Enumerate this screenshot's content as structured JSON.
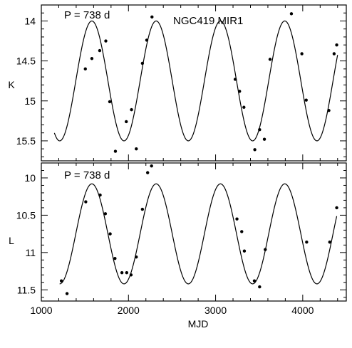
{
  "chart_data": [
    {
      "type": "scatter",
      "title": "",
      "annotations": [
        "P = 738 d",
        "NGC419 MIR1"
      ],
      "xlabel": "MJD",
      "ylabel": "K",
      "xlim": [
        1000,
        4500
      ],
      "ylim": [
        15.75,
        13.8
      ],
      "y_inverted": true,
      "x_ticks": [
        1000,
        2000,
        3000,
        4000
      ],
      "y_ticks": [
        14,
        14.5,
        15,
        15.5
      ],
      "y_tick_labels": [
        "14",
        "14.5",
        "15",
        "15.5"
      ],
      "show_x_tick_labels": false,
      "model": {
        "type": "sinusoid",
        "period_days": 738,
        "mean": 14.75,
        "amplitude": 0.75,
        "peak_mjd": 1580,
        "x_range": [
          1150,
          4400
        ]
      },
      "points": [
        {
          "x": 1505,
          "y": 14.6
        },
        {
          "x": 1580,
          "y": 14.47
        },
        {
          "x": 1670,
          "y": 14.37
        },
        {
          "x": 1740,
          "y": 14.25
        },
        {
          "x": 1785,
          "y": 15.01
        },
        {
          "x": 1850,
          "y": 15.63
        },
        {
          "x": 1975,
          "y": 15.26
        },
        {
          "x": 2035,
          "y": 15.11
        },
        {
          "x": 2090,
          "y": 15.6
        },
        {
          "x": 2160,
          "y": 14.53
        },
        {
          "x": 2210,
          "y": 14.24
        },
        {
          "x": 2270,
          "y": 13.95
        },
        {
          "x": 3225,
          "y": 14.73
        },
        {
          "x": 3275,
          "y": 14.88
        },
        {
          "x": 3325,
          "y": 15.08
        },
        {
          "x": 3450,
          "y": 15.61
        },
        {
          "x": 3505,
          "y": 15.36
        },
        {
          "x": 3560,
          "y": 15.48
        },
        {
          "x": 3625,
          "y": 14.48
        },
        {
          "x": 3870,
          "y": 13.91
        },
        {
          "x": 3990,
          "y": 14.41
        },
        {
          "x": 4040,
          "y": 14.99
        },
        {
          "x": 4300,
          "y": 15.12
        },
        {
          "x": 4360,
          "y": 14.41
        },
        {
          "x": 4390,
          "y": 14.3
        }
      ]
    },
    {
      "type": "scatter",
      "title": "",
      "annotations": [
        "P = 738 d"
      ],
      "xlabel": "MJD",
      "ylabel": "L",
      "xlim": [
        1000,
        4500
      ],
      "ylim": [
        11.65,
        9.8
      ],
      "y_inverted": true,
      "x_ticks": [
        1000,
        2000,
        3000,
        4000
      ],
      "x_tick_labels": [
        "1000",
        "2000",
        "3000",
        "4000"
      ],
      "y_ticks": [
        10,
        10.5,
        11,
        11.5
      ],
      "y_tick_labels": [
        "10",
        "10.5",
        "11",
        "11.5"
      ],
      "show_x_tick_labels": true,
      "model": {
        "type": "sinusoid",
        "period_days": 738,
        "mean": 10.75,
        "amplitude": 0.67,
        "peak_mjd": 1580,
        "x_range": [
          1210,
          4390
        ]
      },
      "points": [
        {
          "x": 1230,
          "y": 11.38
        },
        {
          "x": 1295,
          "y": 11.55
        },
        {
          "x": 1510,
          "y": 10.32
        },
        {
          "x": 1675,
          "y": 10.23
        },
        {
          "x": 1735,
          "y": 10.48
        },
        {
          "x": 1790,
          "y": 10.75
        },
        {
          "x": 1845,
          "y": 11.08
        },
        {
          "x": 1925,
          "y": 11.27
        },
        {
          "x": 1980,
          "y": 11.27
        },
        {
          "x": 2030,
          "y": 11.3
        },
        {
          "x": 2090,
          "y": 11.06
        },
        {
          "x": 2160,
          "y": 10.42
        },
        {
          "x": 2220,
          "y": 9.93
        },
        {
          "x": 2265,
          "y": 9.84
        },
        {
          "x": 3245,
          "y": 10.55
        },
        {
          "x": 3300,
          "y": 10.72
        },
        {
          "x": 3330,
          "y": 10.98
        },
        {
          "x": 3445,
          "y": 11.38
        },
        {
          "x": 3505,
          "y": 11.46
        },
        {
          "x": 3570,
          "y": 10.96
        },
        {
          "x": 4045,
          "y": 10.86
        },
        {
          "x": 4310,
          "y": 10.86
        },
        {
          "x": 4390,
          "y": 10.4
        }
      ]
    }
  ]
}
